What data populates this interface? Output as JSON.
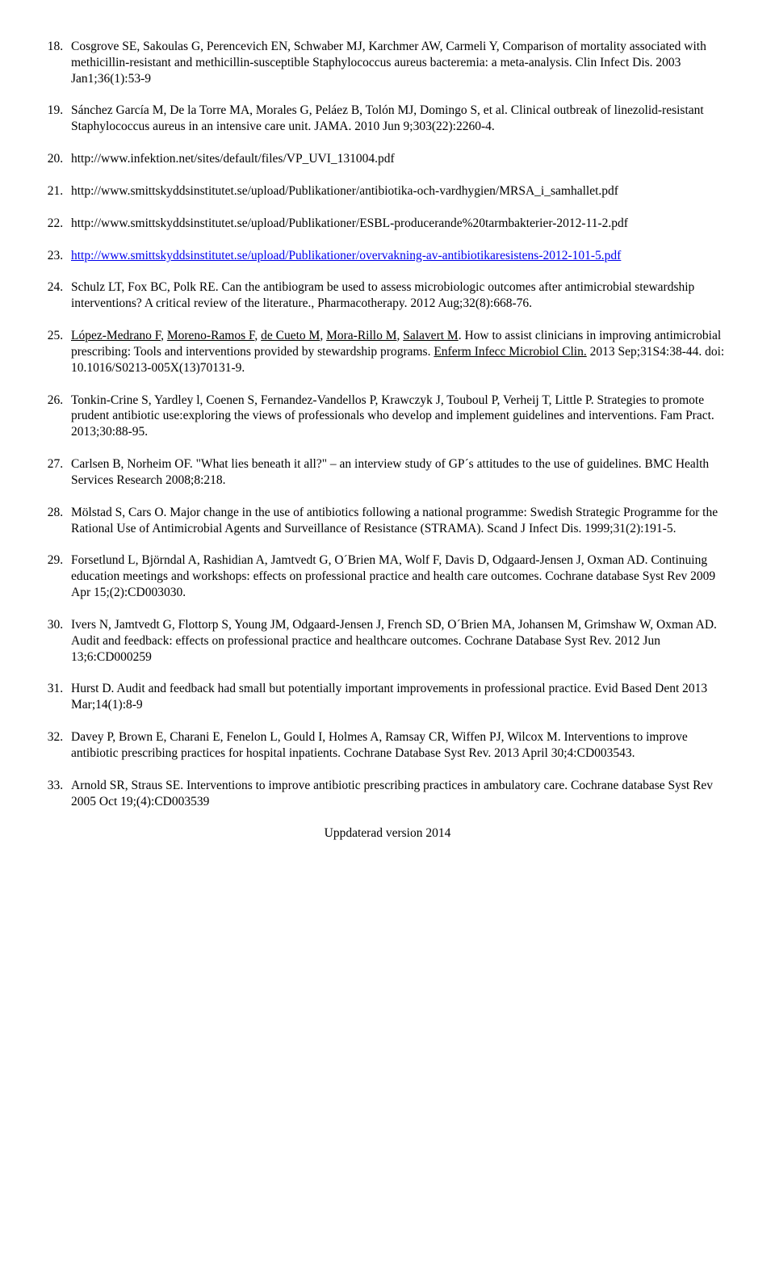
{
  "start_number": 18,
  "refs": [
    {
      "text": "Cosgrove SE, Sakoulas G, Perencevich EN, Schwaber MJ, Karchmer AW, Carmeli Y, Comparison of mortality associated with methicillin-resistant and methicillin-susceptible Staphylococcus aureus bacteremia: a meta-analysis. Clin Infect Dis. 2003 Jan1;36(1):53-9"
    },
    {
      "text": "Sánchez García M, De la Torre MA, Morales G, Peláez B, Tolón MJ, Domingo S, et al. Clinical outbreak of linezolid-resistant Staphylococcus aureus in an intensive care unit. JAMA. 2010 Jun 9;303(22):2260-4."
    },
    {
      "text": "http://www.infektion.net/sites/default/files/VP_UVI_131004.pdf"
    },
    {
      "text": "http://www.smittskyddsinstitutet.se/upload/Publikationer/antibiotika-och-vardhygien/MRSA_i_samhallet.pdf"
    },
    {
      "text": "http://www.smittskyddsinstitutet.se/upload/Publikationer/ESBL-producerande%20tarmbakterier-2012-11-2.pdf"
    },
    {
      "link_text": "http://www.smittskyddsinstitutet.se/upload/Publikationer/overvakning-av-antibiotikaresistens-2012-101-5.pdf",
      "is_link": true
    },
    {
      "text": "Schulz LT, Fox BC, Polk RE. Can the antibiogram be used to assess microbiologic outcomes after antimicrobial stewardship interventions? A critical review of the literature., Pharmacotherapy. 2012 Aug;32(8):668-76."
    },
    {
      "segments": [
        {
          "t": "López-Medrano F",
          "u": true
        },
        {
          "t": ", "
        },
        {
          "t": "Moreno-Ramos F",
          "u": true
        },
        {
          "t": ", "
        },
        {
          "t": "de Cueto M",
          "u": true
        },
        {
          "t": ", "
        },
        {
          "t": "Mora-Rillo M",
          "u": true
        },
        {
          "t": ", "
        },
        {
          "t": "Salavert M",
          "u": true
        },
        {
          "t": ".\nHow to assist clinicians in improving antimicrobial prescribing: Tools and interventions provided by stewardship programs. "
        },
        {
          "t": "Enferm Infecc Microbiol Clin.",
          "u": true
        },
        {
          "t": " 2013 Sep;31S4:38-44. doi: 10.1016/S0213-005X(13)70131-9."
        }
      ]
    },
    {
      "text": "Tonkin-Crine S, Yardley l, Coenen S, Fernandez-Vandellos P, Krawczyk J, Touboul P, Verheij T, Little P. Strategies to promote prudent antibiotic use:exploring the views of professionals who develop and implement guidelines and interventions. Fam Pract. 2013;30:88-95."
    },
    {
      "text": "Carlsen B, Norheim OF. \"What lies beneath it all?\" – an interview study of GP´s attitudes to the use of guidelines. BMC Health Services Research 2008;8:218."
    },
    {
      "text": "Mölstad S, Cars O. Major change in the use of antibiotics following a national programme: Swedish Strategic Programme for the Rational Use of Antimicrobial Agents and Surveillance of Resistance (STRAMA). Scand J Infect Dis. 1999;31(2):191-5."
    },
    {
      "text": "Forsetlund L, Björndal A, Rashidian A, Jamtvedt G, O´Brien MA, Wolf F, Davis D, Odgaard-Jensen J, Oxman AD. Continuing education meetings and workshops: effects on professional practice and health care outcomes. Cochrane database Syst Rev 2009 Apr 15;(2):CD003030."
    },
    {
      "text": "Ivers N, Jamtvedt G, Flottorp S, Young JM, Odgaard-Jensen J, French SD, O´Brien MA, Johansen M, Grimshaw W, Oxman AD. Audit and feedback: effects on professional practice and healthcare outcomes. Cochrane Database Syst Rev. 2012 Jun 13;6:CD000259"
    },
    {
      "text": "Hurst D. Audit and feedback had small but potentially important improvements in professional practice. Evid Based Dent 2013 Mar;14(1):8-9"
    },
    {
      "text": "Davey P, Brown E, Charani E, Fenelon L, Gould I, Holmes A, Ramsay CR, Wiffen PJ, Wilcox M. Interventions to improve antibiotic prescribing practices for hospital inpatients. Cochrane Database Syst Rev. 2013 April 30;4:CD003543."
    },
    {
      "text": "Arnold SR, Straus SE. Interventions to improve antibiotic prescribing practices in ambulatory care. Cochrane database Syst Rev 2005 Oct 19;(4):CD003539"
    }
  ],
  "footer": "Uppdaterad version 2014"
}
